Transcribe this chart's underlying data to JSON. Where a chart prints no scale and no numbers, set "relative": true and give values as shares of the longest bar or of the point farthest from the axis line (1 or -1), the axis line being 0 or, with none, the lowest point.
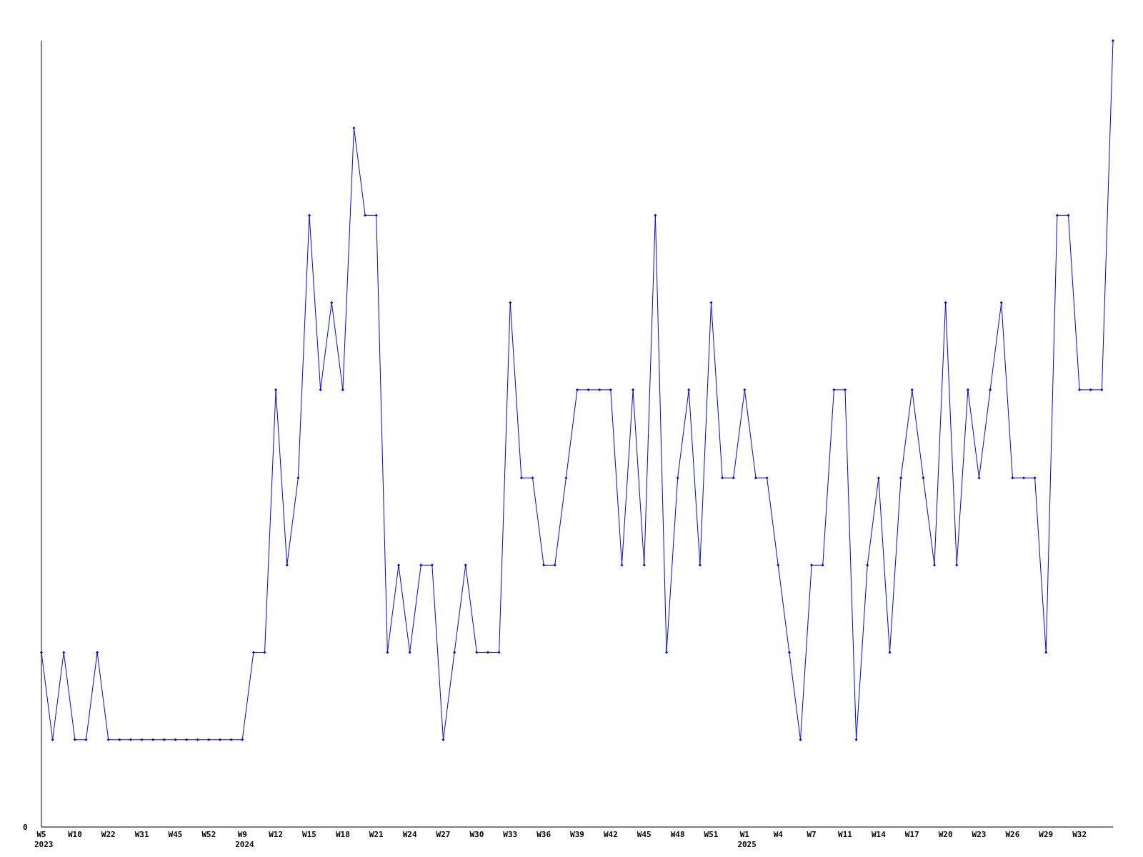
{
  "chart_data": {
    "type": "line",
    "relative": true,
    "marker": "diamond",
    "annotations": [
      "0",
      "2023",
      "2024",
      "2025"
    ],
    "categories": [
      "W5",
      null,
      null,
      "W10",
      null,
      null,
      "W22",
      null,
      null,
      "W31",
      null,
      null,
      "W45",
      null,
      null,
      "W52",
      null,
      null,
      "W9",
      null,
      null,
      "W12",
      null,
      null,
      "W15",
      null,
      null,
      "W18",
      null,
      null,
      "W21",
      null,
      null,
      "W24",
      null,
      null,
      "W27",
      null,
      null,
      "W30",
      null,
      null,
      "W33",
      null,
      null,
      "W36",
      null,
      null,
      "W39",
      null,
      null,
      "W42",
      null,
      null,
      "W45",
      null,
      null,
      "W48",
      null,
      null,
      "W51",
      null,
      null,
      "W1",
      null,
      null,
      "W4",
      null,
      null,
      "W7",
      null,
      null,
      "W11",
      null,
      null,
      "W14",
      null,
      null,
      "W17",
      null,
      null,
      "W20",
      null,
      null,
      "W23",
      null,
      null,
      "W26",
      null,
      null,
      "W29",
      null,
      null,
      "W32",
      null,
      null,
      null
    ],
    "series": [
      {
        "color": "#0000ff",
        "values": [
          0.222,
          0.111,
          0.222,
          0.111,
          0.111,
          0.222,
          0.111,
          0.111,
          0.111,
          0.111,
          0.111,
          0.111,
          0.111,
          0.111,
          0.111,
          0.111,
          0.111,
          0.111,
          0.111,
          0.222,
          0.222,
          0.556,
          0.333,
          0.444,
          0.778,
          0.556,
          0.667,
          0.556,
          0.889,
          0.778,
          0.778,
          0.222,
          0.333,
          0.222,
          0.333,
          0.333,
          0.111,
          0.222,
          0.333,
          0.222,
          0.222,
          0.222,
          0.667,
          0.444,
          0.444,
          0.333,
          0.333,
          0.444,
          0.556,
          0.556,
          0.556,
          0.556,
          0.333,
          0.556,
          0.333,
          0.778,
          0.222,
          0.444,
          0.556,
          0.333,
          0.667,
          0.444,
          0.444,
          0.556,
          0.444,
          0.444,
          0.333,
          0.222,
          0.111,
          0.333,
          0.333,
          0.556,
          0.556,
          0.111,
          0.333,
          0.444,
          0.222,
          0.444,
          0.556,
          0.444,
          0.333,
          0.667,
          0.333,
          0.556,
          0.444,
          0.556,
          0.667,
          0.444,
          0.444,
          0.444,
          0.222,
          0.778,
          0.778,
          0.556,
          0.556,
          0.556,
          1
        ]
      }
    ]
  }
}
